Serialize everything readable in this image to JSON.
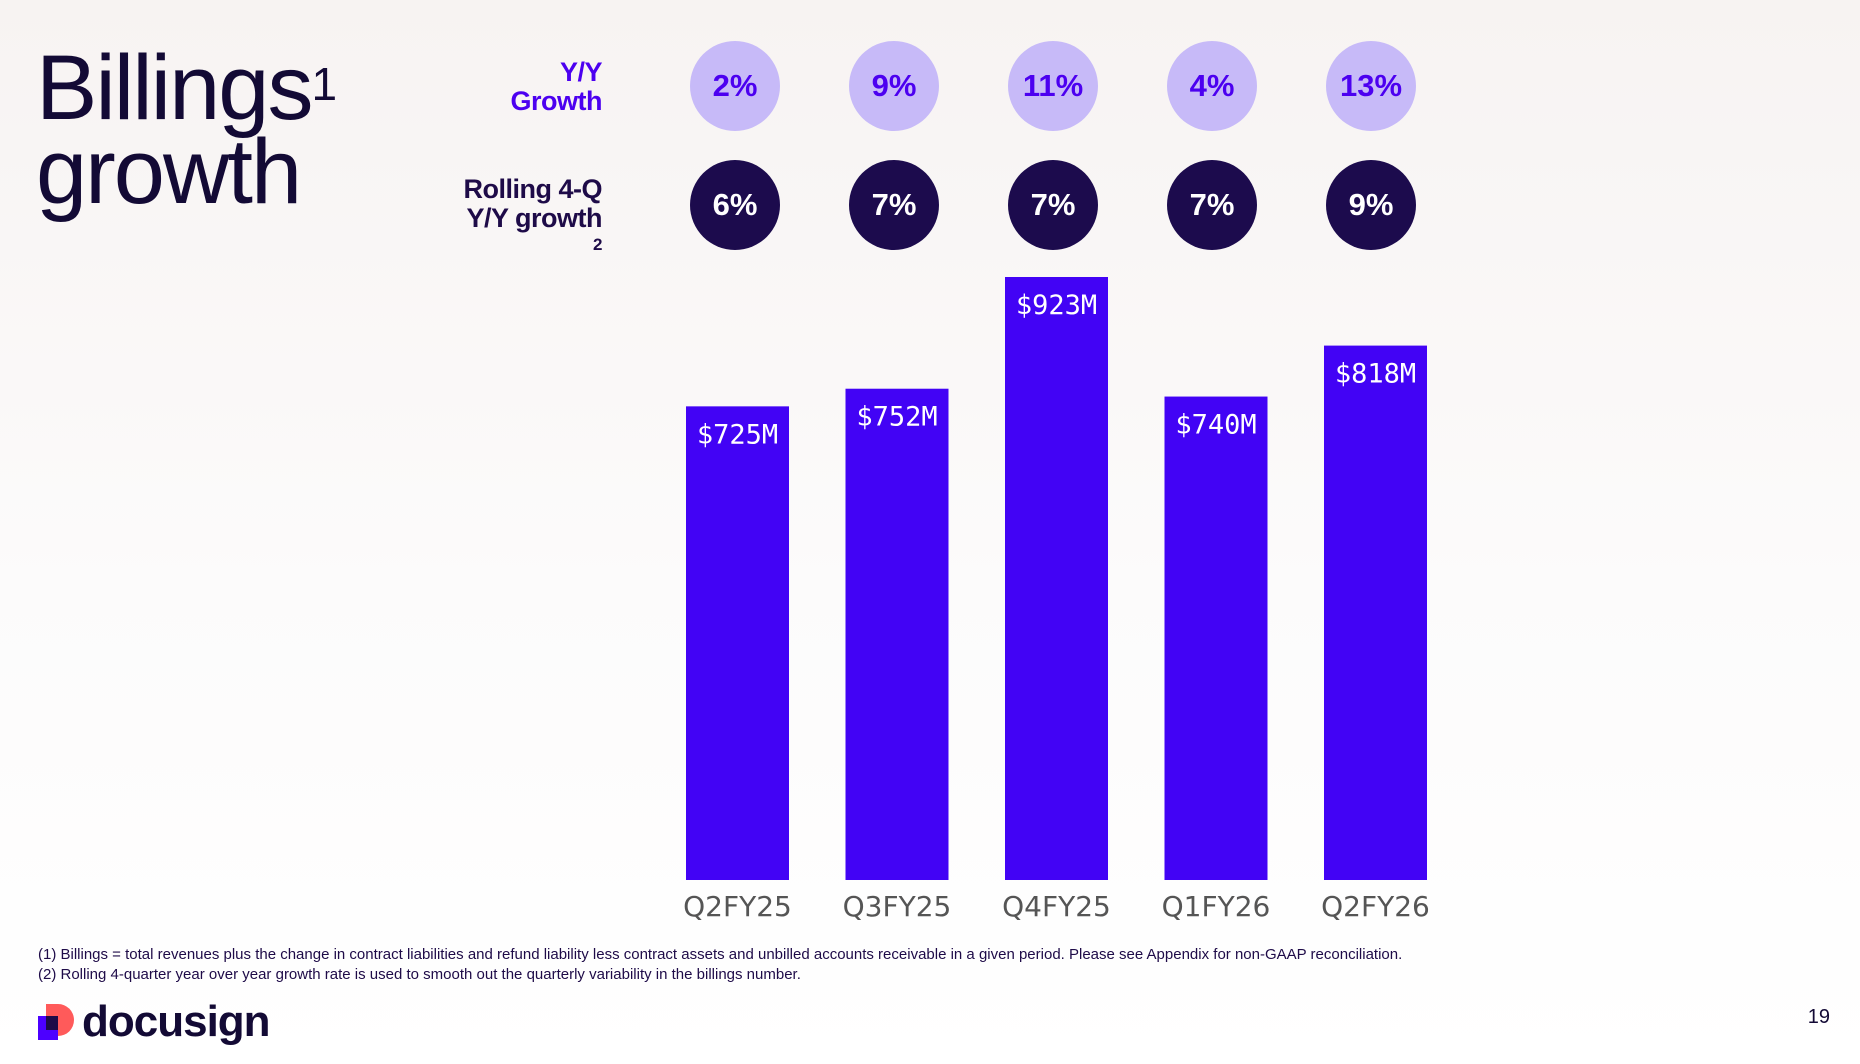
{
  "title": {
    "line1": "Billings",
    "sup": "1",
    "line2": "growth"
  },
  "row_labels": {
    "yy": [
      "Y/Y",
      "Growth"
    ],
    "rolling": [
      "Rolling 4-Q",
      "Y/Y growth"
    ],
    "rolling_sup": "2"
  },
  "yy_growth": [
    "2%",
    "9%",
    "11%",
    "4%",
    "13%"
  ],
  "rolling_growth": [
    "6%",
    "7%",
    "7%",
    "7%",
    "9%"
  ],
  "chart_data": {
    "type": "bar",
    "categories": [
      "Q2FY25",
      "Q3FY25",
      "Q4FY25",
      "Q1FY26",
      "Q2FY26"
    ],
    "values": [
      725,
      752,
      923,
      740,
      818
    ],
    "data_labels": [
      "$725M",
      "$752M",
      "$923M",
      "$740M",
      "$818M"
    ],
    "unit": "$M",
    "title": "",
    "xlabel": "",
    "ylabel": "",
    "ylim": [
      0,
      1000
    ],
    "grid": false,
    "bar_color": "#4203f5"
  },
  "footnotes": [
    "(1) Billings = total revenues plus the change in contract liabilities and refund liability less contract assets and unbilled accounts receivable in a given period. Please see Appendix for non-GAAP reconciliation.",
    "(2) Rolling 4-quarter year over year growth rate is used to smooth out the quarterly variability in the billings number."
  ],
  "logo_text": "docusign",
  "page_number": "19",
  "colors": {
    "accent": "#4c00f0",
    "dark": "#1c0b4d",
    "light_circle": "#c7baf8",
    "logo_red": "#ff5a5a"
  }
}
